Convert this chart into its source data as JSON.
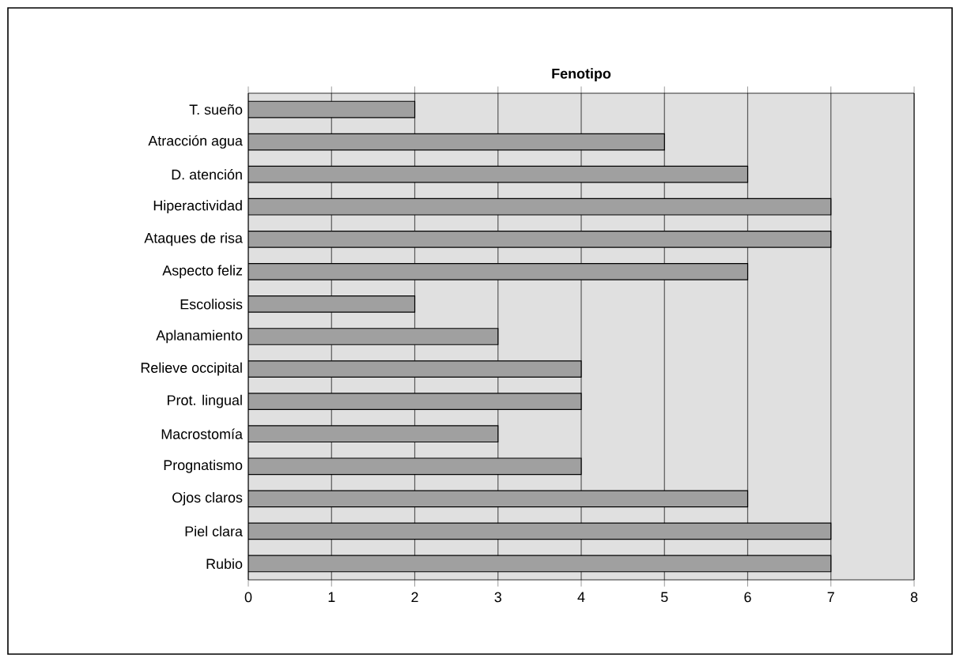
{
  "chart_data": {
    "type": "bar",
    "orientation": "horizontal",
    "title": "Fenotipo",
    "categories": [
      "T. sueño",
      "Atracción agua",
      "D. atención",
      "Hiperactividad",
      "Ataques de risa",
      "Aspecto feliz",
      "Escoliosis",
      "Aplanamiento",
      "Relieve occipital",
      "Prot. lingual",
      "Macrostomía",
      "Prognatismo",
      "Ojos claros",
      "Piel clara",
      "Rubio"
    ],
    "values": [
      2,
      5,
      6,
      7,
      7,
      6,
      2,
      3,
      4,
      4,
      3,
      4,
      6,
      7,
      7
    ],
    "color": "#a0a0a0",
    "xlim": [
      0,
      8
    ],
    "xticks": [
      0,
      1,
      2,
      3,
      4,
      5,
      6,
      7,
      8
    ],
    "grid": "x"
  }
}
